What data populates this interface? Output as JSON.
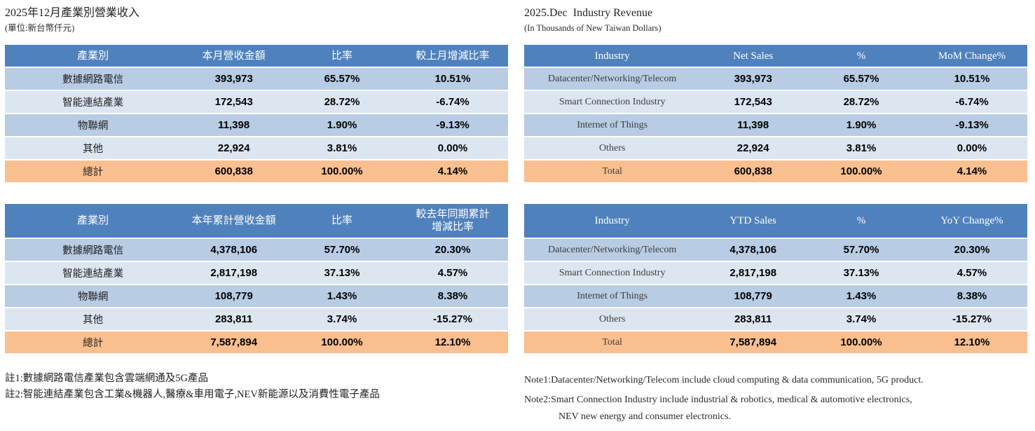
{
  "colors": {
    "header_bg": "#4F81BD",
    "row_band_dark": "#B8CCE4",
    "row_band_light": "#DCE6F1",
    "total_row_bg": "#FABF8F",
    "header_text": "#FFFFFF"
  },
  "left": {
    "title": "2025年12月產業別營業收入",
    "subtitle": "(單位:新台幣仟元)",
    "monthly": {
      "headers": [
        "產業別",
        "本月營收金額",
        "比率",
        "較上月增減比率"
      ],
      "rows": [
        [
          "數據網路電信",
          "393,973",
          "65.57%",
          "10.51%"
        ],
        [
          "智能連結產業",
          "172,543",
          "28.72%",
          "-6.74%"
        ],
        [
          "物聯網",
          "11,398",
          "1.90%",
          "-9.13%"
        ],
        [
          "其他",
          "22,924",
          "3.81%",
          "0.00%"
        ]
      ],
      "total": [
        "總計",
        "600,838",
        "100.00%",
        "4.14%"
      ]
    },
    "ytd": {
      "headers": [
        "產業別",
        "本年累計營收金額",
        "比率",
        "較去年同期累計\n增減比率"
      ],
      "rows": [
        [
          "數據網路電信",
          "4,378,106",
          "57.70%",
          "20.30%"
        ],
        [
          "智能連結產業",
          "2,817,198",
          "37.13%",
          "4.57%"
        ],
        [
          "物聯網",
          "108,779",
          "1.43%",
          "8.38%"
        ],
        [
          "其他",
          "283,811",
          "3.74%",
          "-15.27%"
        ]
      ],
      "total": [
        "總計",
        "7,587,894",
        "100.00%",
        "12.10%"
      ]
    },
    "notes": [
      "註1:數據網路電信產業包含雲端網通及5G產品",
      "註2:智能連結產業包含工業&機器人,醫療&車用電子,NEV新能源以及消費性電子產品"
    ]
  },
  "right": {
    "title": "2025.Dec  Industry Revenue",
    "subtitle": "(In Thousands of New Taiwan Dollars)",
    "monthly": {
      "headers": [
        "Industry",
        "Net Sales",
        "%",
        "MoM Change%"
      ],
      "rows": [
        [
          "Datacenter/Networking/Telecom",
          "393,973",
          "65.57%",
          "10.51%"
        ],
        [
          "Smart Connection Industry",
          "172,543",
          "28.72%",
          "-6.74%"
        ],
        [
          "Internet of Things",
          "11,398",
          "1.90%",
          "-9.13%"
        ],
        [
          "Others",
          "22,924",
          "3.81%",
          "0.00%"
        ]
      ],
      "total": [
        "Total",
        "600,838",
        "100.00%",
        "4.14%"
      ]
    },
    "ytd": {
      "headers": [
        "Industry",
        "YTD Sales",
        "%",
        "YoY Change%"
      ],
      "rows": [
        [
          "Datacenter/Networking/Telecom",
          "4,378,106",
          "57.70%",
          "20.30%"
        ],
        [
          "Smart Connection Industry",
          "2,817,198",
          "37.13%",
          "4.57%"
        ],
        [
          "Internet of Things",
          "108,779",
          "1.43%",
          "8.38%"
        ],
        [
          "Others",
          "283,811",
          "3.74%",
          "-15.27%"
        ]
      ],
      "total": [
        "Total",
        "7,587,894",
        "100.00%",
        "12.10%"
      ]
    },
    "notes": [
      "Note1:Datacenter/Networking/Telecom include cloud computing & data communication, 5G product.",
      "Note2:Smart Connection Industry include industrial & robotics, medical & automotive electronics,",
      "NEV new energy and consumer electronics."
    ]
  }
}
